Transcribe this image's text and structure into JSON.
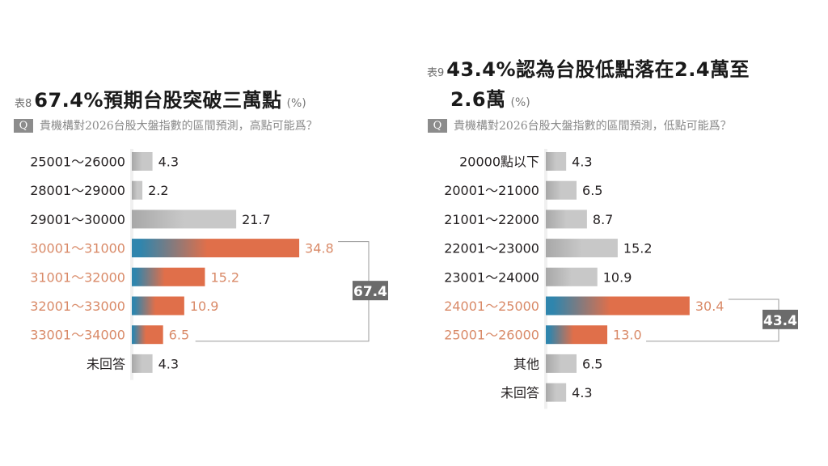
{
  "colors": {
    "highlight_text": "#d98a68",
    "highlight_bar": "#e06f4a",
    "highlight_bar_start": "#2f85ad",
    "normal_bar": "#c8c8c8",
    "normal_text": "#231f20",
    "total_box": "#6b6b6b"
  },
  "chart_data": [
    {
      "type": "bar",
      "orientation": "horizontal",
      "table_no": "表8",
      "title": "67.4%預期台股突破三萬點",
      "unit": "(%)",
      "q_label": "Q",
      "question": "貴機構對2026台股大盤指數的區間預測，高點可能爲？",
      "categories": [
        "25001～26000",
        "28001～29000",
        "29001～30000",
        "30001～31000",
        "31001～32000",
        "32001～33000",
        "33001～34000",
        "未回答"
      ],
      "values": [
        4.3,
        2.2,
        21.7,
        34.8,
        15.2,
        10.9,
        6.5,
        4.3
      ],
      "value_labels": [
        "4.3",
        "2.2",
        "21.7",
        "34.8",
        "15.2",
        "10.9",
        "6.5",
        "4.3"
      ],
      "highlighted": [
        false,
        false,
        false,
        true,
        true,
        true,
        true,
        false
      ],
      "bracket_total": "67.4",
      "xlim": [
        0,
        40
      ]
    },
    {
      "type": "bar",
      "orientation": "horizontal",
      "table_no": "表9",
      "title_line1": "43.4%認為台股低點落在2.4萬至",
      "title_line2": "2.6萬",
      "unit": "(%)",
      "q_label": "Q",
      "question": "貴機構對2026台股大盤指數的區間預測，低點可能爲？",
      "categories": [
        "20000點以下",
        "20001～21000",
        "21001～22000",
        "22001～23000",
        "23001～24000",
        "24001～25000",
        "25001～26000",
        "其他",
        "未回答"
      ],
      "values": [
        4.3,
        6.5,
        8.7,
        15.2,
        10.9,
        30.4,
        13.0,
        6.5,
        4.3
      ],
      "value_labels": [
        "4.3",
        "6.5",
        "8.7",
        "15.2",
        "10.9",
        "30.4",
        "13.0",
        "6.5",
        "4.3"
      ],
      "highlighted": [
        false,
        false,
        false,
        false,
        false,
        true,
        true,
        false,
        false
      ],
      "bracket_total": "43.4",
      "xlim": [
        0,
        40
      ]
    }
  ]
}
